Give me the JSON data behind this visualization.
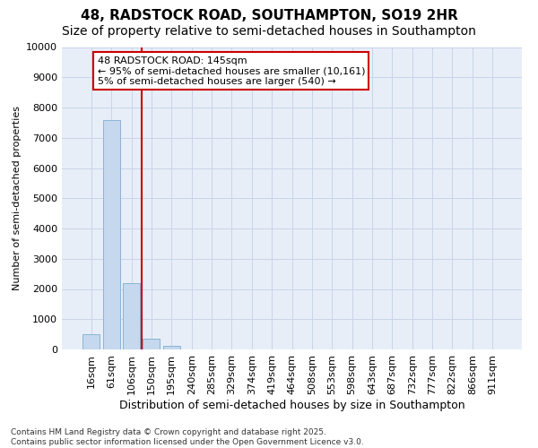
{
  "title_line1": "48, RADSTOCK ROAD, SOUTHAMPTON, SO19 2HR",
  "title_line2": "Size of property relative to semi-detached houses in Southampton",
  "xlabel": "Distribution of semi-detached houses by size in Southampton",
  "ylabel": "Number of semi-detached properties",
  "categories": [
    "16sqm",
    "61sqm",
    "106sqm",
    "150sqm",
    "195sqm",
    "240sqm",
    "285sqm",
    "329sqm",
    "374sqm",
    "419sqm",
    "464sqm",
    "508sqm",
    "553sqm",
    "598sqm",
    "643sqm",
    "687sqm",
    "732sqm",
    "777sqm",
    "822sqm",
    "866sqm",
    "911sqm"
  ],
  "values": [
    500,
    7600,
    2200,
    370,
    120,
    0,
    0,
    0,
    0,
    0,
    0,
    0,
    0,
    0,
    0,
    0,
    0,
    0,
    0,
    0,
    0
  ],
  "bar_color": "#c5d8ee",
  "bar_edge_color": "#8ab4d4",
  "vline_color": "#cc0000",
  "annotation_text": "48 RADSTOCK ROAD: 145sqm\n← 95% of semi-detached houses are smaller (10,161)\n5% of semi-detached houses are larger (540) →",
  "annotation_box_color": "#ffffff",
  "annotation_box_edge": "#cc0000",
  "ylim": [
    0,
    10000
  ],
  "yticks": [
    0,
    1000,
    2000,
    3000,
    4000,
    5000,
    6000,
    7000,
    8000,
    9000,
    10000
  ],
  "grid_color": "#c8d4e8",
  "bg_color": "#e8eef8",
  "footer": "Contains HM Land Registry data © Crown copyright and database right 2025.\nContains public sector information licensed under the Open Government Licence v3.0.",
  "title_fontsize": 11,
  "subtitle_fontsize": 10,
  "xlabel_fontsize": 9,
  "ylabel_fontsize": 8,
  "tick_fontsize": 8,
  "annot_fontsize": 8,
  "footer_fontsize": 6.5
}
